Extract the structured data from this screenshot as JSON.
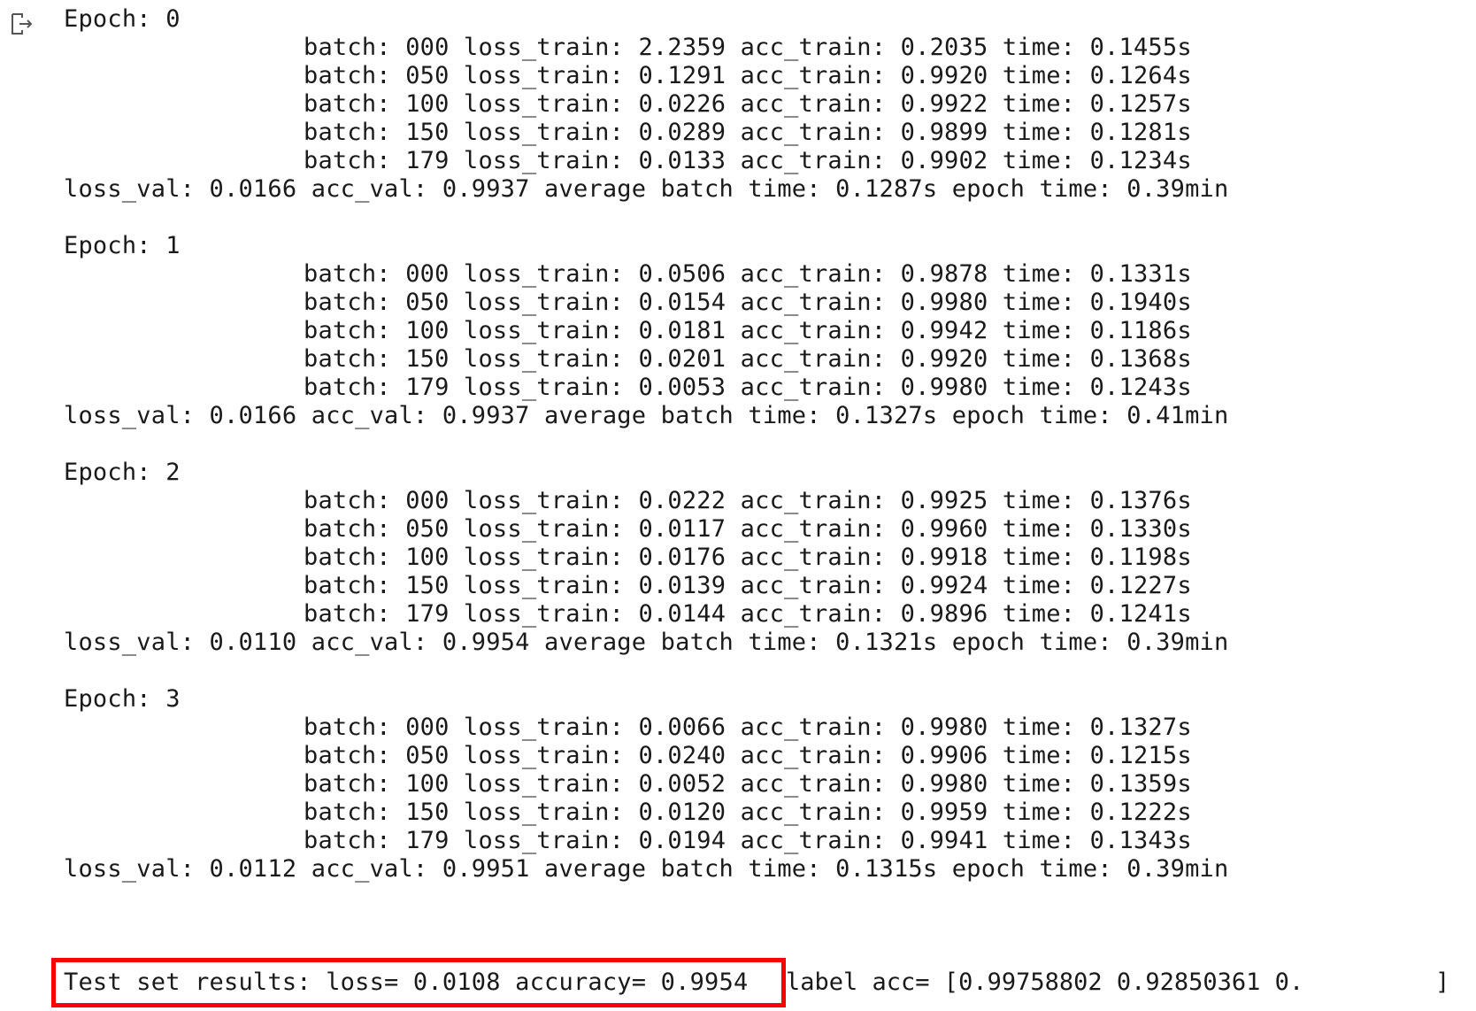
{
  "output": {
    "icon": "output-redirect-icon",
    "epochs": [
      {
        "header": "Epoch: 0",
        "batches": [
          "batch: 000 loss_train: 2.2359 acc_train: 0.2035 time: 0.1455s",
          "batch: 050 loss_train: 0.1291 acc_train: 0.9920 time: 0.1264s",
          "batch: 100 loss_train: 0.0226 acc_train: 0.9922 time: 0.1257s",
          "batch: 150 loss_train: 0.0289 acc_train: 0.9899 time: 0.1281s",
          "batch: 179 loss_train: 0.0133 acc_train: 0.9902 time: 0.1234s"
        ],
        "summary": "loss_val: 0.0166 acc_val: 0.9937 average batch time: 0.1287s epoch time: 0.39min"
      },
      {
        "header": "Epoch: 1",
        "batches": [
          "batch: 000 loss_train: 0.0506 acc_train: 0.9878 time: 0.1331s",
          "batch: 050 loss_train: 0.0154 acc_train: 0.9980 time: 0.1940s",
          "batch: 100 loss_train: 0.0181 acc_train: 0.9942 time: 0.1186s",
          "batch: 150 loss_train: 0.0201 acc_train: 0.9920 time: 0.1368s",
          "batch: 179 loss_train: 0.0053 acc_train: 0.9980 time: 0.1243s"
        ],
        "summary": "loss_val: 0.0166 acc_val: 0.9937 average batch time: 0.1327s epoch time: 0.41min"
      },
      {
        "header": "Epoch: 2",
        "batches": [
          "batch: 000 loss_train: 0.0222 acc_train: 0.9925 time: 0.1376s",
          "batch: 050 loss_train: 0.0117 acc_train: 0.9960 time: 0.1330s",
          "batch: 100 loss_train: 0.0176 acc_train: 0.9918 time: 0.1198s",
          "batch: 150 loss_train: 0.0139 acc_train: 0.9924 time: 0.1227s",
          "batch: 179 loss_train: 0.0144 acc_train: 0.9896 time: 0.1241s"
        ],
        "summary": "loss_val: 0.0110 acc_val: 0.9954 average batch time: 0.1321s epoch time: 0.39min"
      },
      {
        "header": "Epoch: 3",
        "batches": [
          "batch: 000 loss_train: 0.0066 acc_train: 0.9980 time: 0.1327s",
          "batch: 050 loss_train: 0.0240 acc_train: 0.9906 time: 0.1215s",
          "batch: 100 loss_train: 0.0052 acc_train: 0.9980 time: 0.1359s",
          "batch: 150 loss_train: 0.0120 acc_train: 0.9959 time: 0.1222s",
          "batch: 179 loss_train: 0.0194 acc_train: 0.9941 time: 0.1343s"
        ],
        "summary": "loss_val: 0.0112 acc_val: 0.9951 average batch time: 0.1315s epoch time: 0.39min"
      }
    ],
    "test_result": "Test set results: loss= 0.0108 accuracy= 0.9954",
    "label_acc": "label acc= [0.99758802 0.92850361 0.",
    "label_acc_close": "]",
    "highlight_color": "#ff0000"
  }
}
